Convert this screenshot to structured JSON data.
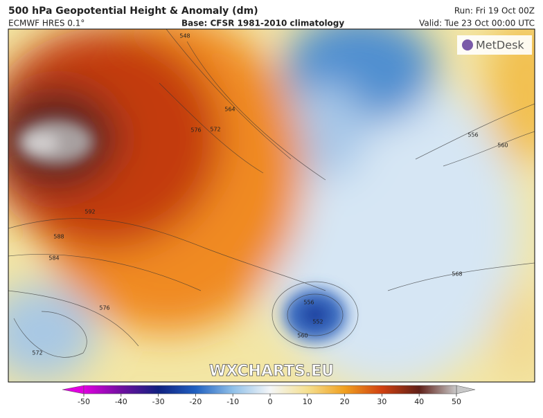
{
  "header": {
    "title": "500 hPa Geopotential Height & Anomaly (dm)",
    "model": "ECMWF HRES 0.1°",
    "base": "Base: CFSR 1981-2010 climatology",
    "run": "Run: Fri 19 Oct 00Z",
    "valid": "Valid: Tue 23 Oct 00:00 UTC"
  },
  "logo": "MetDesk",
  "watermark": "WXCHARTS.EU",
  "contour_labels": [
    548,
    564,
    572,
    576,
    592,
    588,
    584,
    576,
    572,
    556,
    560,
    556,
    560,
    568,
    552
  ],
  "colorbar": {
    "lim": [
      -50,
      50
    ],
    "ticks": [
      -50,
      -40,
      -30,
      -20,
      -10,
      0,
      10,
      20,
      30,
      40,
      50
    ]
  }
}
